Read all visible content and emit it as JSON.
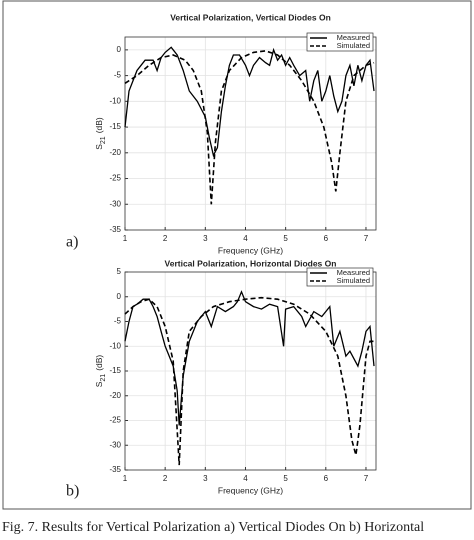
{
  "chart_data": [
    {
      "type": "line",
      "title": "Vertical Polarization, Vertical Diodes On",
      "panel": "a)",
      "xlabel": "Frequency (GHz)",
      "ylabel": [
        "S",
        "21",
        "(dB)"
      ],
      "xlim": [
        1,
        7.25
      ],
      "xticks": [
        1,
        2,
        3,
        4,
        5,
        6,
        7
      ],
      "ylim": [
        -35,
        2.5
      ],
      "yticks": [
        0,
        -5,
        -10,
        -15,
        -20,
        -25,
        -30,
        -35
      ],
      "grid": true,
      "legend": "upper right",
      "series": [
        {
          "name": "Measured",
          "color": "#000000",
          "style": "solid",
          "x": [
            1.0,
            1.1,
            1.3,
            1.5,
            1.7,
            1.8,
            1.9,
            2.0,
            2.15,
            2.3,
            2.45,
            2.6,
            2.8,
            3.0,
            3.1,
            3.2,
            3.3,
            3.4,
            3.5,
            3.6,
            3.7,
            3.85,
            4.0,
            4.1,
            4.2,
            4.35,
            4.5,
            4.6,
            4.7,
            4.8,
            4.9,
            5.0,
            5.1,
            5.2,
            5.35,
            5.5,
            5.6,
            5.7,
            5.8,
            5.9,
            6.0,
            6.1,
            6.2,
            6.3,
            6.4,
            6.5,
            6.6,
            6.7,
            6.8,
            6.9,
            7.0,
            7.1,
            7.2
          ],
          "values": [
            -15,
            -8,
            -4,
            -2,
            -2,
            -4,
            -1.5,
            -0.5,
            0.5,
            -1,
            -4,
            -8,
            -10,
            -13,
            -17,
            -20.5,
            -19,
            -12,
            -7,
            -3,
            -1,
            -1,
            -3,
            -5,
            -3,
            -1.5,
            -2.5,
            -3,
            0,
            -2,
            -1,
            -3,
            -1.5,
            -3,
            -5,
            -4,
            -10,
            -6,
            -4,
            -10,
            -8,
            -5,
            -9,
            -12,
            -10,
            -5,
            -3,
            -7,
            -3,
            -6,
            -3,
            -2,
            -8
          ]
        },
        {
          "name": "Simulated",
          "color": "#000000",
          "style": "dashed",
          "x": [
            1.0,
            1.3,
            1.6,
            1.9,
            2.2,
            2.5,
            2.7,
            2.9,
            3.05,
            3.15,
            3.25,
            3.4,
            3.6,
            3.9,
            4.2,
            4.5,
            4.8,
            5.1,
            5.4,
            5.7,
            5.95,
            6.15,
            6.25,
            6.35,
            6.5,
            6.7,
            7.0,
            7.2
          ],
          "values": [
            -6.5,
            -5,
            -3,
            -1.5,
            -1,
            -2,
            -4,
            -8,
            -16,
            -30,
            -18,
            -8,
            -4,
            -1.5,
            -0.5,
            -0.2,
            -1,
            -3,
            -6,
            -10,
            -15,
            -22,
            -27.5,
            -20,
            -10,
            -5,
            -3,
            -2.5
          ]
        }
      ]
    },
    {
      "type": "line",
      "title": "Vertical Polarization, Horizontal Diodes On",
      "panel": "b)",
      "xlabel": "Frequency (GHz)",
      "ylabel": [
        "S",
        "21",
        "(dB)"
      ],
      "xlim": [
        1,
        7.25
      ],
      "xticks": [
        1,
        2,
        3,
        4,
        5,
        6,
        7
      ],
      "ylim": [
        -35,
        5
      ],
      "yticks": [
        5,
        0,
        -5,
        -10,
        -15,
        -20,
        -25,
        -30,
        -35
      ],
      "grid": true,
      "legend": "upper right",
      "series": [
        {
          "name": "Measured",
          "color": "#000000",
          "style": "solid",
          "x": [
            1.0,
            1.1,
            1.2,
            1.3,
            1.45,
            1.6,
            1.7,
            1.8,
            1.9,
            2.0,
            2.1,
            2.2,
            2.3,
            2.35,
            2.45,
            2.6,
            2.8,
            3.0,
            3.15,
            3.3,
            3.5,
            3.7,
            3.8,
            3.9,
            4.0,
            4.2,
            4.4,
            4.6,
            4.8,
            4.95,
            5.0,
            5.2,
            5.4,
            5.5,
            5.7,
            5.9,
            6.1,
            6.2,
            6.35,
            6.5,
            6.6,
            6.8,
            6.9,
            7.0,
            7.1,
            7.2
          ],
          "values": [
            -9,
            -5,
            -2,
            -1.5,
            -0.5,
            -0.5,
            -2,
            -4,
            -7,
            -10,
            -12,
            -14,
            -19,
            -26,
            -16,
            -9,
            -5,
            -3,
            -6,
            -2,
            -3,
            -2,
            -1,
            1,
            -1,
            -2,
            -2.5,
            -1.5,
            -2,
            -10,
            -2.5,
            -2,
            -4,
            -6,
            -3,
            -4,
            -2,
            -10,
            -7,
            -12,
            -11,
            -14,
            -11,
            -7,
            -6,
            -14
          ]
        },
        {
          "name": "Simulated",
          "color": "#000000",
          "style": "dashed",
          "x": [
            1.0,
            1.2,
            1.4,
            1.6,
            1.8,
            2.0,
            2.2,
            2.35,
            2.45,
            2.6,
            2.9,
            3.2,
            3.6,
            4.0,
            4.4,
            4.8,
            5.2,
            5.6,
            6.0,
            6.3,
            6.5,
            6.65,
            6.75,
            6.85,
            7.0,
            7.1,
            7.2
          ],
          "values": [
            -3.5,
            -2,
            -1,
            -0.5,
            -2,
            -6,
            -13,
            -34,
            -15,
            -7,
            -4,
            -2,
            -1,
            -0.5,
            -0.2,
            -0.5,
            -1.5,
            -3.5,
            -7,
            -12,
            -20,
            -29,
            -32,
            -26,
            -12,
            -9,
            -9
          ]
        }
      ]
    }
  ],
  "caption": "Fig. 7.  Results for Vertical Polarization a) Vertical Diodes On b) Horizontal"
}
